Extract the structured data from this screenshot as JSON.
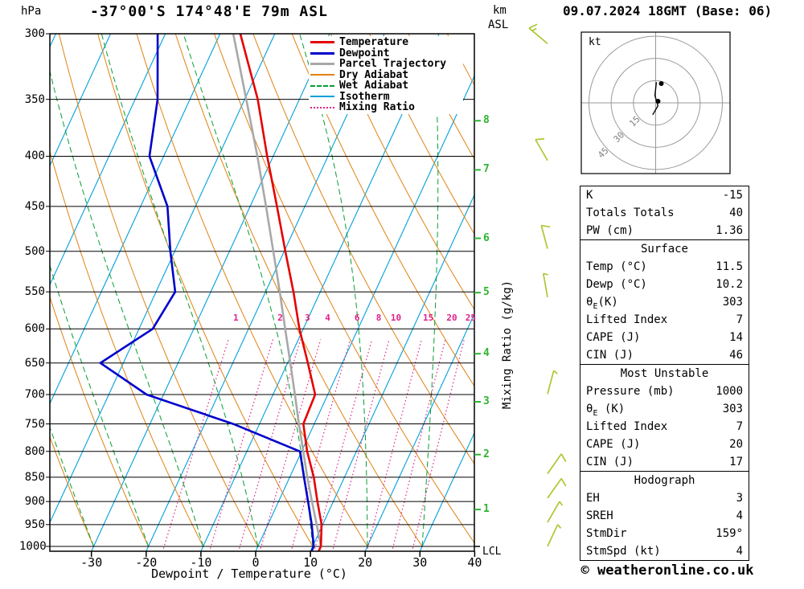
{
  "header": {
    "pressure_unit": "hPa",
    "station": "-37°00'S 174°48'E 79m ASL",
    "altitude_unit_line1": "km",
    "altitude_unit_line2": "ASL",
    "datetime": "09.07.2024 18GMT (Base: 06)"
  },
  "footer": {
    "credit": "© weatheronline.co.uk"
  },
  "legend": {
    "items": [
      {
        "label": "Temperature",
        "color": "#e60000",
        "style": "solid",
        "thick": 3
      },
      {
        "label": "Dewpoint",
        "color": "#0000cc",
        "style": "solid",
        "thick": 3
      },
      {
        "label": "Parcel Trajectory",
        "color": "#a8a8a8",
        "style": "solid",
        "thick": 3
      },
      {
        "label": "Dry Adiabat",
        "color": "#e08214",
        "style": "solid",
        "thick": 2
      },
      {
        "label": "Wet Adiabat",
        "color": "#069e33",
        "style": "dashed",
        "thick": 2
      },
      {
        "label": "Isotherm",
        "color": "#00a0dc",
        "style": "solid",
        "thick": 2
      },
      {
        "label": "Mixing Ratio",
        "color": "#e0218a",
        "style": "dotted",
        "thick": 2
      }
    ]
  },
  "axes": {
    "pressure_ticks": [
      300,
      350,
      400,
      450,
      500,
      550,
      600,
      650,
      700,
      750,
      800,
      850,
      900,
      950,
      1000
    ],
    "temp_ticks": [
      -30,
      -20,
      -10,
      0,
      10,
      20,
      30,
      40
    ],
    "xlabel": "Dewpoint / Temperature (°C)",
    "mixing_axis_label": "Mixing Ratio (g/kg)",
    "mixing_ratios": [
      1,
      2,
      3,
      4,
      6,
      8,
      10,
      15,
      20,
      25
    ],
    "km_ticks": [
      {
        "km": 1,
        "p": 917
      },
      {
        "km": 2,
        "p": 806
      },
      {
        "km": 3,
        "p": 712
      },
      {
        "km": 4,
        "p": 636
      },
      {
        "km": 5,
        "p": 551
      },
      {
        "km": 6,
        "p": 485
      },
      {
        "km": 7,
        "p": 413
      },
      {
        "km": 8,
        "p": 368
      }
    ],
    "lcl": {
      "label": "LCL",
      "p": 1000
    }
  },
  "chart_data": {
    "type": "skewt-log-p",
    "pressure_range_hpa": [
      300,
      1000
    ],
    "isotherm_step_c": 10,
    "dry_adiabat_theta_c": [
      -40,
      150,
      10
    ],
    "wet_adiabat_tw_c": [
      -60,
      40,
      10
    ],
    "profiles": {
      "temperature": [
        [
          1000,
          11.5
        ],
        [
          950,
          9.8
        ],
        [
          900,
          7.1
        ],
        [
          850,
          4.4
        ],
        [
          800,
          1.0
        ],
        [
          750,
          -2.0
        ],
        [
          700,
          -2.3
        ],
        [
          650,
          -6.3
        ],
        [
          600,
          -10.7
        ],
        [
          550,
          -14.9
        ],
        [
          500,
          -19.8
        ],
        [
          450,
          -25.1
        ],
        [
          400,
          -31.1
        ],
        [
          350,
          -37.6
        ],
        [
          300,
          -46.3
        ]
      ],
      "dewpoint": [
        [
          1000,
          10.2
        ],
        [
          950,
          8.0
        ],
        [
          900,
          5.4
        ],
        [
          850,
          2.6
        ],
        [
          800,
          -0.3
        ],
        [
          750,
          -14.8
        ],
        [
          700,
          -33.1
        ],
        [
          650,
          -44.2
        ],
        [
          600,
          -37.5
        ],
        [
          550,
          -36.5
        ],
        [
          500,
          -40.8
        ],
        [
          450,
          -45.1
        ],
        [
          400,
          -52.6
        ],
        [
          350,
          -55.9
        ],
        [
          300,
          -61.4
        ]
      ],
      "parcel": [
        [
          1000,
          11.5
        ],
        [
          950,
          8.9
        ],
        [
          900,
          6.1
        ],
        [
          850,
          3.2
        ],
        [
          800,
          0.3
        ],
        [
          750,
          -2.8
        ],
        [
          700,
          -6.0
        ],
        [
          650,
          -9.5
        ],
        [
          600,
          -13.3
        ],
        [
          550,
          -17.4
        ],
        [
          500,
          -22.0
        ],
        [
          450,
          -27.1
        ],
        [
          400,
          -32.9
        ],
        [
          350,
          -39.7
        ],
        [
          300,
          -47.6
        ]
      ]
    },
    "winds": [
      {
        "p": 307,
        "dir": 310,
        "spd": 15
      },
      {
        "p": 404,
        "dir": 330,
        "spd": 10
      },
      {
        "p": 497,
        "dir": 345,
        "spd": 10
      },
      {
        "p": 557,
        "dir": 350,
        "spd": 5
      },
      {
        "p": 699,
        "dir": 15,
        "spd": 5
      },
      {
        "p": 843,
        "dir": 35,
        "spd": 10
      },
      {
        "p": 893,
        "dir": 35,
        "spd": 10
      },
      {
        "p": 945,
        "dir": 30,
        "spd": 5
      },
      {
        "p": 1000,
        "dir": 25,
        "spd": 5
      }
    ]
  },
  "hodograph": {
    "unit_label": "kt",
    "rings_kt": [
      15,
      30,
      45
    ],
    "ring_labels": [
      "15",
      "30",
      "45"
    ],
    "trace_kt": [
      [
        0.5,
        14
      ],
      [
        -0.5,
        5
      ],
      [
        1.5,
        -2
      ],
      [
        -2,
        -8
      ]
    ],
    "dots_kt": [
      [
        3.8,
        13
      ],
      [
        1.6,
        1.1
      ]
    ]
  },
  "stats": {
    "indices": [
      {
        "label": "K",
        "value": "-15"
      },
      {
        "label": "Totals Totals",
        "value": "40"
      },
      {
        "label": "PW (cm)",
        "value": "1.36"
      }
    ],
    "surface": {
      "title": "Surface",
      "rows": [
        {
          "label": "Temp (°C)",
          "value": "11.5"
        },
        {
          "label": "Dewp (°C)",
          "value": "10.2"
        },
        {
          "theta": true,
          "rest": "(K)",
          "value": "303"
        },
        {
          "label": "Lifted Index",
          "value": "7"
        },
        {
          "label": "CAPE (J)",
          "value": "14"
        },
        {
          "label": "CIN (J)",
          "value": "46"
        }
      ]
    },
    "most_unstable": {
      "title": "Most Unstable",
      "rows": [
        {
          "label": "Pressure (mb)",
          "value": "1000"
        },
        {
          "theta": true,
          "rest": " (K)",
          "value": "303"
        },
        {
          "label": "Lifted Index",
          "value": "7"
        },
        {
          "label": "CAPE (J)",
          "value": "20"
        },
        {
          "label": "CIN (J)",
          "value": "17"
        }
      ]
    },
    "hodograph_stats": {
      "title": "Hodograph",
      "rows": [
        {
          "label": "EH",
          "value": "3"
        },
        {
          "label": "SREH",
          "value": "4"
        },
        {
          "label": "StmDir",
          "value": "159°"
        },
        {
          "label": "StmSpd (kt)",
          "value": "4"
        }
      ]
    }
  }
}
